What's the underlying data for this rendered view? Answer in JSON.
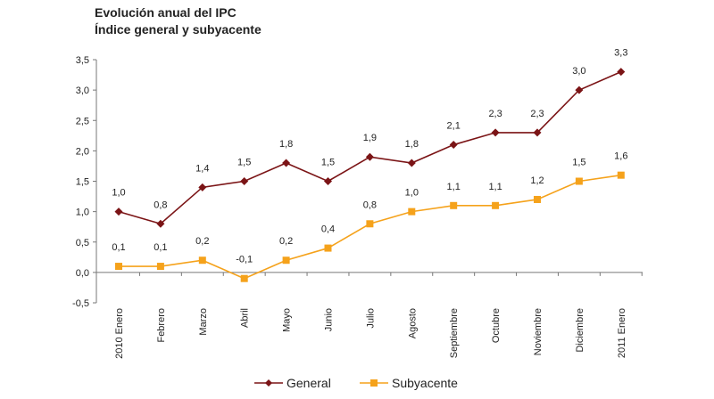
{
  "chart_data": {
    "type": "line",
    "title": "Evolución anual del IPC",
    "subtitle": "Índice general y subyacente",
    "categories": [
      "2010 Enero",
      "Febrero",
      "Marzo",
      "Abril",
      "Mayo",
      "Junio",
      "Julio",
      "Agosto",
      "Septiembre",
      "Octubre",
      "Noviembre",
      "Diciembre",
      "2011 Enero"
    ],
    "series": [
      {
        "name": "General",
        "values": [
          1.0,
          0.8,
          1.4,
          1.5,
          1.8,
          1.5,
          1.9,
          1.8,
          2.1,
          2.3,
          2.3,
          3.0,
          3.3
        ],
        "color": "#7B1416",
        "marker": "diamond"
      },
      {
        "name": "Subyacente",
        "values": [
          0.1,
          0.1,
          0.2,
          -0.1,
          0.2,
          0.4,
          0.8,
          1.0,
          1.1,
          1.1,
          1.2,
          1.5,
          1.6
        ],
        "color": "#F5A21B",
        "marker": "square"
      }
    ],
    "ylim": [
      -0.5,
      3.5
    ],
    "yticks": [
      "-0,5",
      "0,0",
      "0,5",
      "1,0",
      "1,5",
      "2,0",
      "2,5",
      "3,0",
      "3,5"
    ],
    "grid": false,
    "legend": "bottom",
    "decimal_separator": ","
  }
}
